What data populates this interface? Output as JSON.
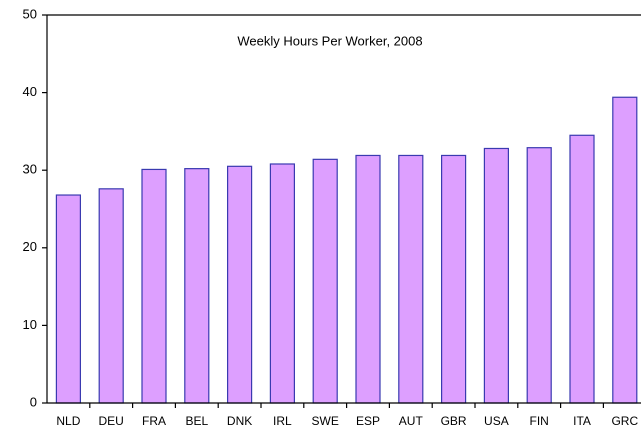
{
  "chart_data": {
    "type": "bar",
    "title": "Weekly Hours Per Worker, 2008",
    "categories": [
      "NLD",
      "DEU",
      "FRA",
      "BEL",
      "DNK",
      "IRL",
      "SWE",
      "ESP",
      "AUT",
      "GBR",
      "USA",
      "FIN",
      "ITA",
      "GRC"
    ],
    "values": [
      26.8,
      27.6,
      30.1,
      30.2,
      30.5,
      30.8,
      31.4,
      31.9,
      31.9,
      31.9,
      32.8,
      32.9,
      34.5,
      39.4
    ],
    "color": "#dd9fff",
    "edge_color": "#3a3ab0",
    "ylim": [
      0,
      50
    ],
    "yticks": [
      0,
      10,
      20,
      30,
      40,
      50
    ],
    "grid": false
  }
}
